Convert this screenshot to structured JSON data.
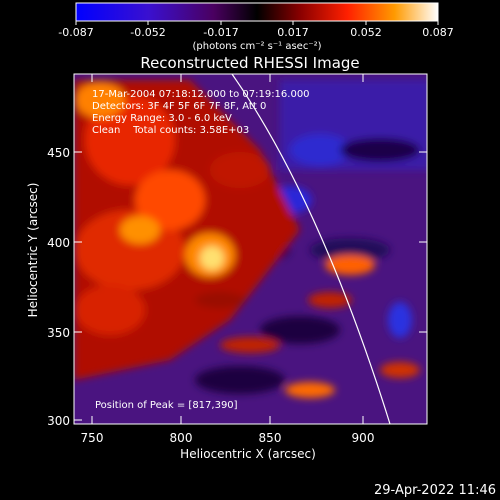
{
  "colorbar": {
    "tick_labels": [
      "-0.087",
      "-0.052",
      "-0.017",
      "0.017",
      "0.052",
      "0.087"
    ],
    "units": "(photons cm⁻² s⁻¹ asec⁻²)",
    "colors": [
      "#0000ff",
      "#3a00b0",
      "#3a0060",
      "#000000",
      "#7a0000",
      "#ff2000",
      "#ff9000",
      "#ffffff"
    ]
  },
  "title": "Reconstructed RHESSI Image",
  "annotations": {
    "time": "17-Mar-2004 07:18:12.000 to 07:19:16.000",
    "detectors": "Detectors: 3F 4F 5F 6F 7F 8F, Att 0",
    "energy": "Energy Range: 3.0 - 6.0 keV",
    "method": "Clean    Total counts: 3.58E+03",
    "peak": "Position of Peak = [817,390]"
  },
  "axes": {
    "xlabel": "Heliocentric X (arcsec)",
    "ylabel": "Heliocentric Y (arcsec)",
    "xticks": [
      "750",
      "800",
      "850",
      "900"
    ],
    "yticks": [
      "300",
      "350",
      "400",
      "450"
    ]
  },
  "timestamp": "29-Apr-2022 11:46"
}
